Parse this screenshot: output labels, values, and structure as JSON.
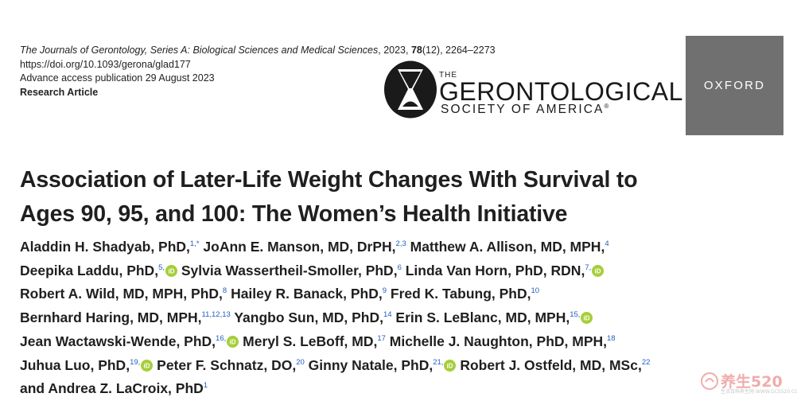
{
  "journal": {
    "name": "The Journals of Gerontology, Series A: Biological Sciences and Medical Sciences",
    "year": "2023",
    "volume": "78",
    "issue": "(12)",
    "pages": "2264–2273",
    "doi": "https://doi.org/10.1093/gerona/glad177",
    "publication": "Advance access publication 29 August 2023",
    "article_type": "Research Article"
  },
  "logos": {
    "gsa_the": "THE",
    "gsa_name": "GERONTOLOGICAL",
    "gsa_society": "SOCIETY OF AMERICA",
    "gsa_reg": "®",
    "oxford": "OXFORD"
  },
  "title": {
    "line1": "Association of Later-Life Weight Changes With Survival to",
    "line2": "Ages 90, 95, and 100: The Women’s Health Initiative"
  },
  "authors": [
    {
      "name": "Aladdin H. Shadyab, PhD,",
      "sup": "1,*",
      "orcid": false
    },
    {
      "name": "JoAnn E. Manson, MD, DrPH,",
      "sup": "2,3",
      "orcid": false
    },
    {
      "name": "Matthew A. Allison, MD, MPH,",
      "sup": "4",
      "orcid": false
    },
    {
      "name": "Deepika Laddu, PhD,",
      "sup": "5,",
      "orcid": true
    },
    {
      "name": "Sylvia Wassertheil-Smoller, PhD,",
      "sup": "6",
      "orcid": false
    },
    {
      "name": "Linda Van Horn, PhD, RDN,",
      "sup": "7,",
      "orcid": true
    },
    {
      "name": "Robert A. Wild, MD, MPH, PhD,",
      "sup": "8",
      "orcid": false
    },
    {
      "name": "Hailey R. Banack, PhD,",
      "sup": "9",
      "orcid": false
    },
    {
      "name": "Fred K. Tabung, PhD,",
      "sup": "10",
      "orcid": false
    },
    {
      "name": "Bernhard Haring, MD, MPH,",
      "sup": "11,12,13",
      "orcid": false
    },
    {
      "name": "Yangbo Sun, MD, PhD,",
      "sup": "14",
      "orcid": false
    },
    {
      "name": "Erin S. LeBlanc, MD, MPH,",
      "sup": "15,",
      "orcid": true
    },
    {
      "name": "Jean Wactawski-Wende, PhD,",
      "sup": "16,",
      "orcid": true
    },
    {
      "name": "Meryl S. LeBoff, MD,",
      "sup": "17",
      "orcid": false
    },
    {
      "name": "Michelle J. Naughton, PhD, MPH,",
      "sup": "18",
      "orcid": false
    },
    {
      "name": "Juhua Luo, PhD,",
      "sup": "19,",
      "orcid": true
    },
    {
      "name": "Peter F. Schnatz, DO,",
      "sup": "20",
      "orcid": false
    },
    {
      "name": "Ginny Natale, PhD,",
      "sup": "21,",
      "orcid": true
    },
    {
      "name": "Robert J. Ostfeld, MD, MSc,",
      "sup": "22",
      "orcid": false
    },
    {
      "name": "and Andrea Z. LaCroix, PhD",
      "sup": "1",
      "orcid": false
    }
  ],
  "watermark": {
    "text": "养生520",
    "sub": "生活百科养生网 WWW.GCS520.COM"
  },
  "colors": {
    "link_blue": "#1f5fbf",
    "orcid_green": "#a6ce39",
    "oxford_bg": "#707070"
  }
}
